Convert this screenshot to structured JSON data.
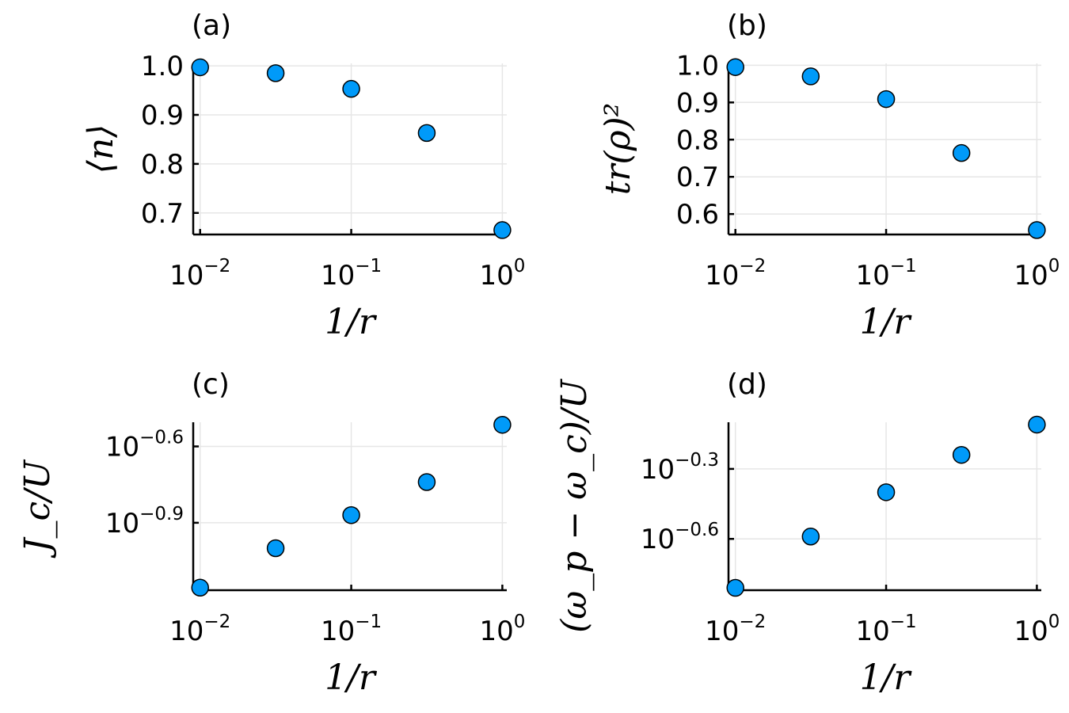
{
  "chart_data": [
    {
      "type": "scatter",
      "panel_label": "(a)",
      "xlabel": "1/r",
      "ylabel": "⟨n⟩",
      "xscale": "log",
      "yscale": "linear",
      "xlim": [
        0.009,
        1.07
      ],
      "ylim": [
        0.656,
        1.005
      ],
      "xticks": [
        {
          "v": 0.01,
          "base": "10",
          "exp": "−2"
        },
        {
          "v": 0.1,
          "base": "10",
          "exp": "−1"
        },
        {
          "v": 1,
          "base": "10",
          "exp": "0"
        }
      ],
      "yticks": [
        {
          "v": 0.7,
          "label": "0.7"
        },
        {
          "v": 0.8,
          "label": "0.8"
        },
        {
          "v": 0.9,
          "label": "0.9"
        },
        {
          "v": 1.0,
          "label": "1.0"
        }
      ],
      "grid": true,
      "series": [
        {
          "x": [
            0.01,
            0.0316,
            0.1,
            0.316,
            1.0
          ],
          "y": [
            0.997,
            0.985,
            0.953,
            0.863,
            0.665
          ]
        }
      ]
    },
    {
      "type": "scatter",
      "panel_label": "(b)",
      "xlabel": "1/r",
      "ylabel": "tr(ρ)²",
      "xscale": "log",
      "yscale": "linear",
      "xlim": [
        0.009,
        1.07
      ],
      "ylim": [
        0.545,
        1.005
      ],
      "xticks": [
        {
          "v": 0.01,
          "base": "10",
          "exp": "−2"
        },
        {
          "v": 0.1,
          "base": "10",
          "exp": "−1"
        },
        {
          "v": 1,
          "base": "10",
          "exp": "0"
        }
      ],
      "yticks": [
        {
          "v": 0.6,
          "label": "0.6"
        },
        {
          "v": 0.7,
          "label": "0.7"
        },
        {
          "v": 0.8,
          "label": "0.8"
        },
        {
          "v": 0.9,
          "label": "0.9"
        },
        {
          "v": 1.0,
          "label": "1.0"
        }
      ],
      "grid": true,
      "series": [
        {
          "x": [
            0.01,
            0.0316,
            0.1,
            0.316,
            1.0
          ],
          "y": [
            0.995,
            0.97,
            0.909,
            0.764,
            0.557
          ]
        }
      ]
    },
    {
      "type": "scatter",
      "panel_label": "(c)",
      "xlabel": "1/r",
      "ylabel": "J_c/U",
      "xscale": "log",
      "yscale": "log",
      "xlim": [
        0.009,
        1.07
      ],
      "ylim_log10": [
        -1.165,
        -0.505
      ],
      "xticks": [
        {
          "v": 0.01,
          "base": "10",
          "exp": "−2"
        },
        {
          "v": 0.1,
          "base": "10",
          "exp": "−1"
        },
        {
          "v": 1,
          "base": "10",
          "exp": "0"
        }
      ],
      "yticks": [
        {
          "v": -0.9,
          "base": "10",
          "exp": "−0.9"
        },
        {
          "v": -0.6,
          "base": "10",
          "exp": "−0.6"
        }
      ],
      "grid": true,
      "series": [
        {
          "x": [
            0.01,
            0.0316,
            0.1,
            0.316,
            1.0
          ],
          "y_log10": [
            -1.155,
            -1.0,
            -0.87,
            -0.74,
            -0.515
          ]
        }
      ]
    },
    {
      "type": "scatter",
      "panel_label": "(d)",
      "xlabel": "1/r",
      "ylabel": "(ω_p − ω_c)/U",
      "xscale": "log",
      "yscale": "log",
      "xlim": [
        0.009,
        1.07
      ],
      "ylim_log10": [
        -0.82,
        -0.1
      ],
      "xticks": [
        {
          "v": 0.01,
          "base": "10",
          "exp": "−2"
        },
        {
          "v": 0.1,
          "base": "10",
          "exp": "−1"
        },
        {
          "v": 1,
          "base": "10",
          "exp": "0"
        }
      ],
      "yticks": [
        {
          "v": -0.6,
          "base": "10",
          "exp": "−0.6"
        },
        {
          "v": -0.3,
          "base": "10",
          "exp": "−0.3"
        }
      ],
      "grid": true,
      "series": [
        {
          "x": [
            0.01,
            0.0316,
            0.1,
            0.316,
            1.0
          ],
          "y_log10": [
            -0.81,
            -0.59,
            -0.4,
            -0.24,
            -0.11
          ]
        }
      ]
    }
  ],
  "colors": {
    "marker_fill": "#009af9",
    "marker_stroke": "#000000"
  }
}
